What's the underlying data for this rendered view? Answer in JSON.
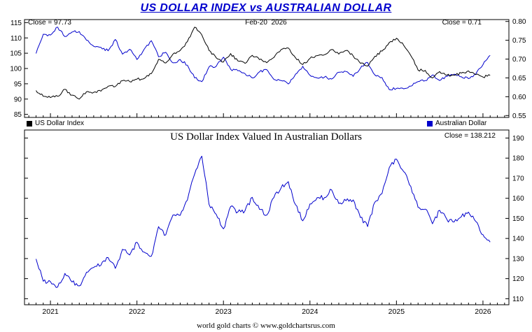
{
  "title": "US DOLLAR INDEX vs AUSTRALIAN DOLLAR",
  "top_panel": {
    "close_left": "Close = 97.73",
    "date_label": "Feb-20  2026",
    "close_right": "Close = 0.71",
    "legend": [
      {
        "label": "US Dollar Index",
        "color": "#000000"
      },
      {
        "label": "Australian Dollar",
        "color": "#0000cc"
      }
    ]
  },
  "bottom_panel": {
    "title": "US Dollar Index Valued In Australian Dollars",
    "close_label": "Close = 138.212"
  },
  "footer": "world gold charts © www.goldchartsrus.com",
  "colors": {
    "title": "#0000cd",
    "usdx_line": "#000000",
    "aud_line": "#0000cc",
    "ratio_line": "#0000cc",
    "frame": "#000000"
  },
  "chart_data": [
    {
      "type": "line",
      "title": "US Dollar Index vs Australian Dollar",
      "x_start": 2020.8333,
      "x_step": 0.0833333,
      "xlim": [
        2020.7,
        2026.3
      ],
      "x_ticks": [
        2021,
        2022,
        2023,
        2024,
        2025,
        2026
      ],
      "axes": {
        "left": {
          "ticks": [
            85,
            90,
            95,
            100,
            105,
            110,
            115
          ],
          "lim": [
            84,
            116
          ],
          "decimals": 0
        },
        "right": {
          "ticks": [
            0.55,
            0.6,
            0.65,
            0.7,
            0.75,
            0.8
          ],
          "lim": [
            0.545,
            0.805
          ],
          "decimals": 2
        }
      },
      "series": [
        {
          "name": "US Dollar Index",
          "axis": "left",
          "color": "#000000",
          "close": 97.73,
          "values": [
            92.8,
            90.9,
            90.5,
            90.9,
            93.2,
            91.3,
            90.0,
            92.4,
            92.2,
            92.6,
            94.2,
            94.1,
            96.0,
            95.7,
            96.5,
            96.7,
            98.3,
            103.0,
            101.8,
            104.7,
            105.9,
            108.8,
            113.5,
            111.0,
            105.9,
            103.5,
            102.1,
            104.9,
            102.5,
            101.7,
            104.3,
            102.9,
            101.9,
            103.6,
            106.2,
            106.7,
            103.5,
            101.3,
            103.3,
            104.2,
            104.5,
            106.2,
            104.7,
            105.9,
            104.1,
            101.7,
            100.8,
            104.0,
            105.7,
            108.5,
            109.9,
            107.6,
            104.2,
            99.5,
            99.4,
            96.9,
            99.0,
            97.8,
            97.8,
            98.5,
            99.2,
            98.0,
            97.2,
            97.73
          ]
        },
        {
          "name": "Australian Dollar",
          "axis": "right",
          "color": "#0000cc",
          "close": 0.71,
          "values": [
            0.715,
            0.766,
            0.764,
            0.785,
            0.76,
            0.772,
            0.773,
            0.75,
            0.734,
            0.731,
            0.722,
            0.752,
            0.713,
            0.726,
            0.699,
            0.726,
            0.749,
            0.706,
            0.718,
            0.69,
            0.699,
            0.684,
            0.65,
            0.64,
            0.679,
            0.681,
            0.705,
            0.673,
            0.669,
            0.661,
            0.65,
            0.666,
            0.672,
            0.646,
            0.643,
            0.634,
            0.66,
            0.681,
            0.657,
            0.65,
            0.652,
            0.647,
            0.665,
            0.667,
            0.654,
            0.676,
            0.691,
            0.658,
            0.651,
            0.619,
            0.622,
            0.621,
            0.628,
            0.64,
            0.643,
            0.658,
            0.643,
            0.654,
            0.66,
            0.653,
            0.648,
            0.66,
            0.685,
            0.71
          ]
        }
      ]
    },
    {
      "type": "line",
      "title": "US Dollar Index Valued In Australian Dollars",
      "x_start": 2020.8333,
      "x_step": 0.0833333,
      "xlim": [
        2020.7,
        2026.3
      ],
      "x_ticks": [
        2021,
        2022,
        2023,
        2024,
        2025,
        2026
      ],
      "axes": {
        "right": {
          "ticks": [
            110,
            120,
            130,
            140,
            150,
            160,
            170,
            180,
            190
          ],
          "lim": [
            107,
            194
          ],
          "decimals": 0
        }
      },
      "series": [
        {
          "name": "US Dollar Index Valued In Australian Dollars",
          "axis": "right",
          "color": "#0000cc",
          "close": 138.212,
          "values": [
            129.8,
            118.7,
            118.5,
            115.8,
            122.6,
            118.3,
            116.4,
            123.2,
            125.6,
            126.7,
            130.5,
            125.1,
            134.6,
            131.8,
            138.1,
            133.2,
            131.2,
            145.9,
            141.8,
            151.7,
            151.5,
            159.1,
            172.0,
            181.0,
            157.0,
            152.0,
            144.8,
            155.9,
            153.2,
            153.9,
            160.5,
            154.5,
            151.6,
            160.4,
            165.2,
            168.3,
            156.8,
            148.8,
            157.2,
            160.3,
            160.3,
            164.2,
            157.4,
            158.8,
            159.2,
            150.4,
            145.9,
            158.1,
            162.4,
            175.3,
            179.5,
            173.3,
            165.9,
            155.5,
            154.6,
            147.3,
            154.0,
            149.5,
            148.2,
            150.8,
            153.1,
            148.5,
            141.9,
            138.212
          ]
        }
      ]
    }
  ]
}
